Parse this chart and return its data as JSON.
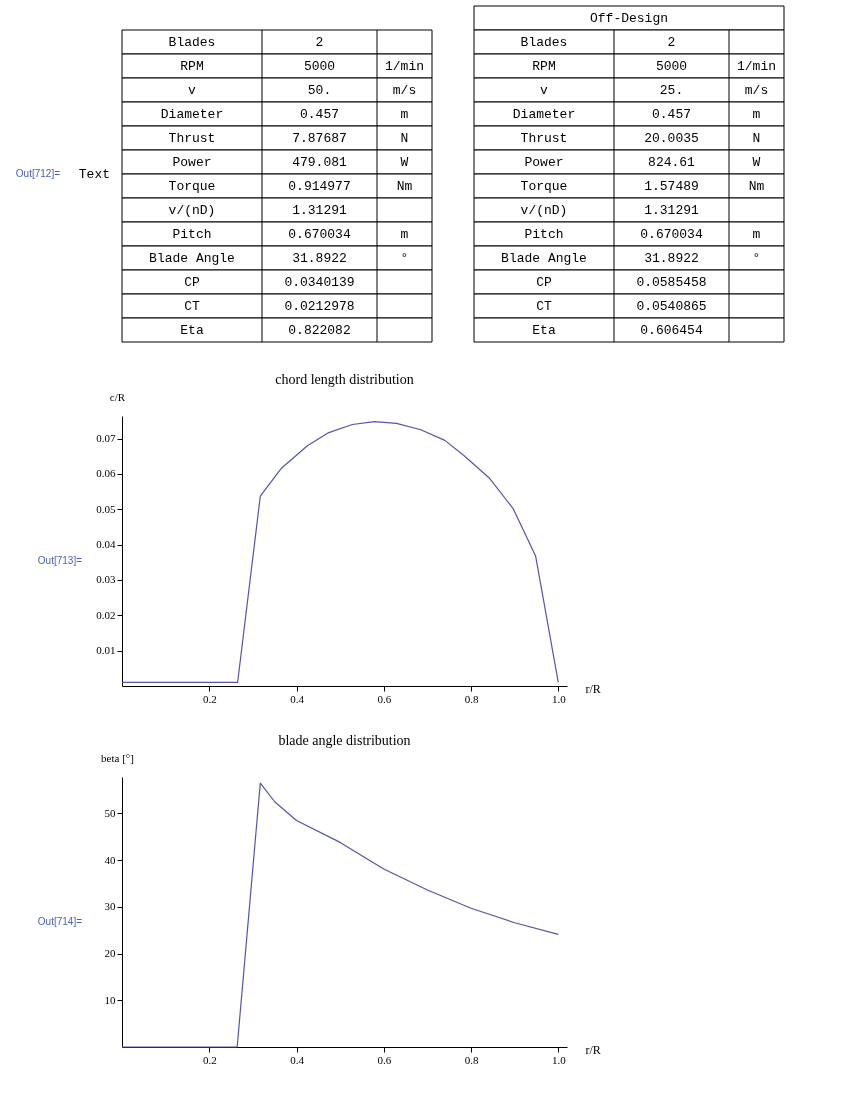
{
  "chart_data": [
    {
      "type": "other",
      "annotations": [
        "Out[712]=",
        "Text"
      ],
      "cells": [
        [
          "Blades",
          "2",
          null
        ],
        [
          "RPM",
          "5000",
          "1/min"
        ],
        [
          "v",
          "50.",
          "m/s"
        ],
        [
          "Diameter",
          "0.457",
          "m"
        ],
        [
          "Thrust",
          "7.87687",
          "N"
        ],
        [
          "Power",
          "479.081",
          "W"
        ],
        [
          "Torque",
          "0.914977",
          "Nm"
        ],
        [
          "v/(nD)",
          "1.31291",
          null
        ],
        [
          "Pitch",
          "0.670034",
          "m"
        ],
        [
          "Blade Angle",
          "31.8922",
          "°"
        ],
        [
          "CP",
          "0.0340139",
          null
        ],
        [
          "CT",
          "0.0212978",
          null
        ],
        [
          "Eta",
          "0.822082",
          null
        ]
      ]
    },
    {
      "type": "other",
      "title": "Off-Design",
      "cells": [
        [
          "Blades",
          "2",
          null
        ],
        [
          "RPM",
          "5000",
          "1/min"
        ],
        [
          "v",
          "25.",
          "m/s"
        ],
        [
          "Diameter",
          "0.457",
          "m"
        ],
        [
          "Thrust",
          "20.0035",
          "N"
        ],
        [
          "Power",
          "824.61",
          "W"
        ],
        [
          "Torque",
          "1.57489",
          "Nm"
        ],
        [
          "v/(nD)",
          "1.31291",
          null
        ],
        [
          "Pitch",
          "0.670034",
          "m"
        ],
        [
          "Blade Angle",
          "31.8922",
          "°"
        ],
        [
          "CP",
          "0.0585458",
          null
        ],
        [
          "CT",
          "0.0540865",
          null
        ],
        [
          "Eta",
          "0.606454",
          null
        ]
      ]
    },
    {
      "type": "line",
      "title": "chord length distribution",
      "xlabel": "r/R",
      "ylabel": "c/R",
      "annotations": [
        "Out[713]="
      ],
      "x": [
        0,
        0.265,
        0.317,
        0.366,
        0.425,
        0.474,
        0.528,
        0.579,
        0.629,
        0.685,
        0.74,
        0.785,
        0.843,
        0.897,
        0.948,
        1.0
      ],
      "series": [
        {
          "color": "#5555a8",
          "values": [
            0.001,
            0.001,
            0.0537,
            0.0617,
            0.068,
            0.0717,
            0.074,
            0.0748,
            0.0743,
            0.0725,
            0.0695,
            0.0651,
            0.0587,
            0.0501,
            0.0368,
            0.001
          ]
        }
      ],
      "xlim": [
        0,
        1.02
      ],
      "ylim": [
        0,
        0.0764
      ],
      "xticks": [
        0.2,
        0.4,
        0.6,
        0.8,
        {
          "value": 1.0,
          "label": "1.0"
        }
      ],
      "yticks": [
        0.01,
        0.02,
        0.03,
        0.04,
        0.05,
        0.06,
        0.07
      ],
      "grid": false
    },
    {
      "type": "line",
      "title": "blade angle distribution",
      "xlabel": "r/R",
      "ylabel": "beta [°]",
      "annotations": [
        "Out[714]="
      ],
      "x": [
        0,
        0.264,
        0.317,
        0.35,
        0.4,
        0.5,
        0.6,
        0.7,
        0.8,
        0.9,
        1.0
      ],
      "series": [
        {
          "color": "#5555a8",
          "values": [
            0,
            0,
            56.5,
            52.5,
            48.5,
            43.8,
            38.1,
            33.6,
            29.7,
            26.6,
            24.1
          ]
        }
      ],
      "xlim": [
        0,
        1.02
      ],
      "ylim": [
        0,
        57.8
      ],
      "xticks": [
        0.2,
        0.4,
        0.6,
        0.8,
        {
          "value": 1.0,
          "label": "1.0"
        }
      ],
      "yticks": [
        10,
        20,
        30,
        40,
        50
      ],
      "grid": false
    }
  ]
}
